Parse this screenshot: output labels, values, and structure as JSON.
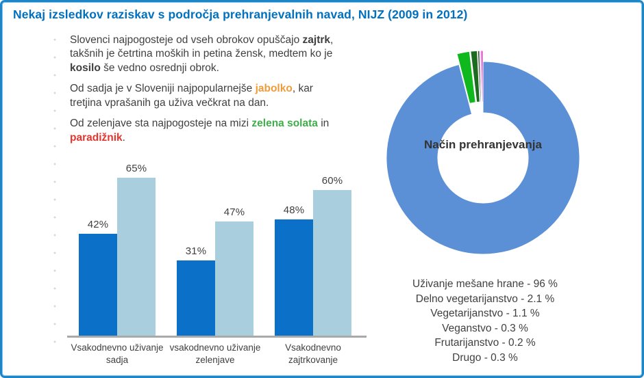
{
  "palette": {
    "frame_border": "#1d86c8",
    "title_blue": "#0070c0",
    "text_gray": "#3f3f3f",
    "highlight_orange": "#ee9b3b",
    "highlight_green": "#3fae49",
    "highlight_red": "#e6352c",
    "axis_gray": "#a9a9a9"
  },
  "title": "Nekaj izsledkov raziskav s področja prehranjevalnih navad, NIJZ (2009 in 2012)",
  "paragraphs": [
    {
      "segments": [
        {
          "text": "Slovenci najpogosteje od vseh obrokov opuščajo ",
          "style": "normal"
        },
        {
          "text": "zajtrk",
          "style": "bold"
        },
        {
          "text": ", takšnih je četrtina moških in petina žensk, medtem ko je ",
          "style": "normal"
        },
        {
          "text": "kosilo",
          "style": "bold"
        },
        {
          "text": " še vedno osrednji obrok.",
          "style": "normal"
        }
      ]
    },
    {
      "segments": [
        {
          "text": "Od sadja je v Sloveniji najpopularnejše ",
          "style": "normal"
        },
        {
          "text": "jabolko",
          "style": "orange-bold"
        },
        {
          "text": ", kar tretjina vprašanih ga uživa večkrat na dan.",
          "style": "normal"
        }
      ]
    },
    {
      "segments": [
        {
          "text": "Od zelenjave sta najpogosteje na mizi ",
          "style": "normal"
        },
        {
          "text": "zelena solata",
          "style": "green-bold"
        },
        {
          "text": " in ",
          "style": "normal"
        },
        {
          "text": "paradižnik",
          "style": "red-bold"
        },
        {
          "text": ".",
          "style": "normal"
        }
      ]
    }
  ],
  "chart_data": [
    {
      "type": "bar",
      "title": "",
      "categories": [
        "Vsakodnevno uživanje sadja",
        "vsakodnevno uživanje zelenjave",
        "Vsakodnevno zajtrkovanje"
      ],
      "series": [
        {
          "color": "#0b70c7",
          "values": [
            42,
            31,
            48
          ]
        },
        {
          "color": "#a9cede",
          "values": [
            65,
            47,
            60
          ]
        }
      ],
      "value_label_format": "{v}%",
      "xlabel": "",
      "ylabel": "",
      "ylim": [
        0,
        70
      ],
      "grid": false,
      "legend": "none"
    },
    {
      "type": "pie",
      "subtype": "donut-exploded",
      "title": "Način prehranjevanja",
      "legend_position": "bottom",
      "slices": [
        {
          "label": "Uživanje mešane hrane",
          "value": 96,
          "color": "#5b8fd6",
          "display": "Uživanje mešane hrane - 96 %"
        },
        {
          "label": "Delno vegetarijanstvo",
          "value": 2.1,
          "color": "#0fb81c",
          "display": "Delno vegetarijanstvo - 2.1 %"
        },
        {
          "label": "Vegetarijanstvo",
          "value": 1.1,
          "color": "#1d6b21",
          "display": "Vegetarijanstvo - 1.1 %"
        },
        {
          "label": "Veganstvo",
          "value": 0.3,
          "color": "#2d4a2d",
          "display": "Veganstvo - 0.3 %"
        },
        {
          "label": "Frutarijanstvo",
          "value": 0.2,
          "color": "#f894d8",
          "display": "Frutarijanstvo - 0.2 %"
        },
        {
          "label": "Drugo",
          "value": 0.3,
          "color": "#f011cc",
          "display": "Drugo - 0.3 %"
        }
      ]
    }
  ]
}
